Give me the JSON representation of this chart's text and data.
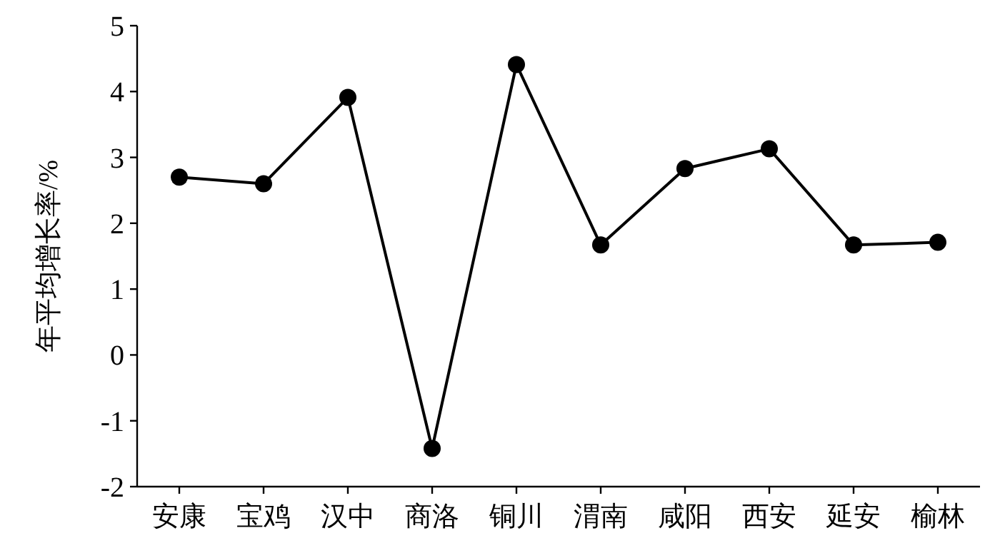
{
  "chart_data": {
    "type": "line",
    "ylabel": "年平均增长率/%",
    "categories": [
      "安康",
      "宝鸡",
      "汉中",
      "商洛",
      "铜川",
      "渭南",
      "咸阳",
      "西安",
      "延安",
      "榆林"
    ],
    "series": [
      {
        "color": "#000000",
        "values": [
          2.7,
          2.6,
          3.91,
          -1.42,
          4.41,
          1.67,
          2.83,
          3.13,
          1.67,
          1.71
        ]
      }
    ],
    "ylim": [
      -2,
      5
    ],
    "yticks": [
      {
        "value": -2,
        "label": "-2"
      },
      {
        "value": -1,
        "label": "-1"
      },
      0,
      1,
      2,
      3,
      4,
      5
    ],
    "marker": "circle",
    "line_style": "solid",
    "grid": false
  }
}
